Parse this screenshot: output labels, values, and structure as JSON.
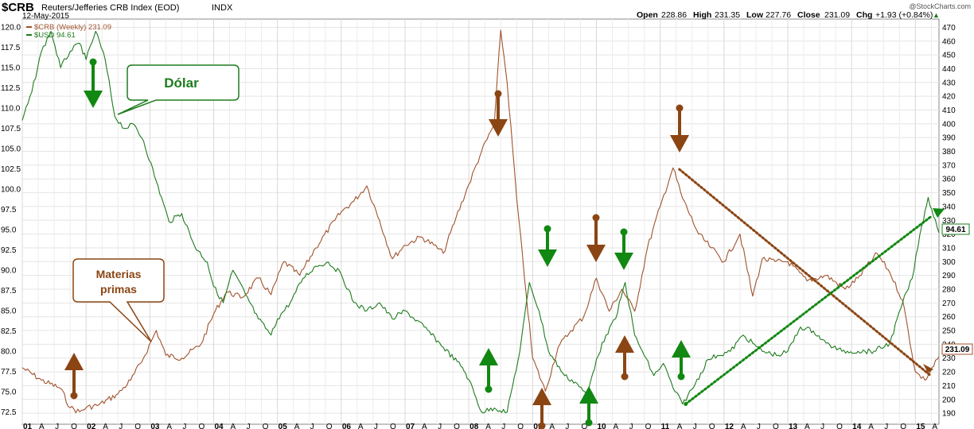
{
  "header": {
    "symbol": "$CRB",
    "name": "Reuters/Jefferies CRB Index (EOD)",
    "exchange": "INDX",
    "date": "12-May-2015",
    "copyright": "@StockCharts.com",
    "ohlc": {
      "open_label": "Open",
      "open": "228.86",
      "high_label": "High",
      "high": "231.35",
      "low_label": "Low",
      "low": "227.76",
      "close_label": "Close",
      "close": "231.09",
      "chg_label": "Chg",
      "chg": "+1.93 (+0.84%)"
    },
    "up_arrow": "▲"
  },
  "legend": [
    {
      "label": "$CRB (Weekly) 231.09",
      "color": "#a0522d"
    },
    {
      "label": "$USD 94.61",
      "color": "#1e7b1e"
    }
  ],
  "price_tags": {
    "crb": "231.09",
    "usd": "94.61"
  },
  "annotations": {
    "dolar": "Dólar",
    "materias_line1": "Materias",
    "materias_line2": "primas"
  },
  "colors": {
    "crb": "#a0522d",
    "usd": "#1e7b1e",
    "arrow_brown": "#8b4513",
    "arrow_green": "#118811"
  },
  "chart_data": {
    "type": "line",
    "title": "$CRB Reuters/Jefferies CRB Index (EOD)",
    "x_ticks": [
      "01",
      "A",
      "J",
      "O",
      "02",
      "A",
      "J",
      "O",
      "03",
      "A",
      "J",
      "O",
      "04",
      "A",
      "J",
      "O",
      "05",
      "A",
      "J",
      "O",
      "06",
      "A",
      "J",
      "O",
      "07",
      "A",
      "J",
      "O",
      "08",
      "A",
      "J",
      "O",
      "09",
      "A",
      "J",
      "O",
      "10",
      "A",
      "J",
      "O",
      "11",
      "A",
      "J",
      "O",
      "12",
      "A",
      "J",
      "O",
      "13",
      "A",
      "J",
      "O",
      "14",
      "A",
      "J",
      "O",
      "15",
      "A"
    ],
    "x_range": [
      2001.0,
      2015.37
    ],
    "left_axis": {
      "label": "$USD",
      "ylim": [
        71.0,
        121.0
      ],
      "ticks": [
        72.5,
        75.0,
        77.5,
        80.0,
        82.5,
        85.0,
        87.5,
        90.0,
        92.5,
        95.0,
        97.5,
        100.0,
        102.5,
        105.0,
        107.5,
        110.0,
        112.5,
        115.0,
        117.5,
        120.0
      ]
    },
    "right_axis": {
      "label": "$CRB",
      "ylim": [
        182,
        476
      ],
      "ticks": [
        190,
        200,
        210,
        220,
        230,
        240,
        250,
        260,
        270,
        280,
        290,
        300,
        310,
        320,
        330,
        340,
        350,
        360,
        370,
        380,
        390,
        400,
        410,
        420,
        430,
        440,
        450,
        460,
        470
      ]
    },
    "grid": true,
    "series": [
      {
        "name": "$CRB (Weekly)",
        "axis": "right",
        "points": [
          [
            2001.0,
            223
          ],
          [
            2001.3,
            214
          ],
          [
            2001.6,
            208
          ],
          [
            2001.75,
            194
          ],
          [
            2001.9,
            191
          ],
          [
            2002.0,
            194
          ],
          [
            2002.2,
            196
          ],
          [
            2002.5,
            204
          ],
          [
            2002.7,
            214
          ],
          [
            2002.9,
            230
          ],
          [
            2003.1,
            250
          ],
          [
            2003.25,
            232
          ],
          [
            2003.5,
            230
          ],
          [
            2003.8,
            240
          ],
          [
            2004.0,
            262
          ],
          [
            2004.2,
            278
          ],
          [
            2004.45,
            274
          ],
          [
            2004.7,
            288
          ],
          [
            2004.9,
            276
          ],
          [
            2005.1,
            300
          ],
          [
            2005.35,
            290
          ],
          [
            2005.6,
            310
          ],
          [
            2005.9,
            330
          ],
          [
            2006.0,
            336
          ],
          [
            2006.2,
            344
          ],
          [
            2006.4,
            355
          ],
          [
            2006.6,
            330
          ],
          [
            2006.8,
            302
          ],
          [
            2007.0,
            312
          ],
          [
            2007.25,
            318
          ],
          [
            2007.45,
            312
          ],
          [
            2007.6,
            306
          ],
          [
            2007.8,
            332
          ],
          [
            2008.0,
            356
          ],
          [
            2008.2,
            380
          ],
          [
            2008.4,
            400
          ],
          [
            2008.5,
            468
          ],
          [
            2008.6,
            430
          ],
          [
            2008.75,
            346
          ],
          [
            2008.9,
            276
          ],
          [
            2009.0,
            230
          ],
          [
            2009.2,
            206
          ],
          [
            2009.4,
            238
          ],
          [
            2009.6,
            250
          ],
          [
            2009.8,
            260
          ],
          [
            2010.0,
            288
          ],
          [
            2010.2,
            264
          ],
          [
            2010.4,
            280
          ],
          [
            2010.6,
            264
          ],
          [
            2010.8,
            310
          ],
          [
            2011.0,
            340
          ],
          [
            2011.2,
            368
          ],
          [
            2011.35,
            346
          ],
          [
            2011.6,
            320
          ],
          [
            2011.8,
            310
          ],
          [
            2012.0,
            300
          ],
          [
            2012.25,
            320
          ],
          [
            2012.45,
            275
          ],
          [
            2012.6,
            302
          ],
          [
            2012.8,
            300
          ],
          [
            2013.0,
            300
          ],
          [
            2013.3,
            286
          ],
          [
            2013.6,
            290
          ],
          [
            2013.9,
            280
          ],
          [
            2014.1,
            288
          ],
          [
            2014.4,
            306
          ],
          [
            2014.6,
            292
          ],
          [
            2014.8,
            272
          ],
          [
            2015.0,
            220
          ],
          [
            2015.15,
            214
          ],
          [
            2015.37,
            231
          ]
        ]
      },
      {
        "name": "$USD",
        "axis": "left",
        "points": [
          [
            2001.0,
            108.5
          ],
          [
            2001.15,
            112
          ],
          [
            2001.3,
            117
          ],
          [
            2001.45,
            119.5
          ],
          [
            2001.6,
            115
          ],
          [
            2001.75,
            117
          ],
          [
            2001.9,
            118
          ],
          [
            2002.0,
            116
          ],
          [
            2002.15,
            119.5
          ],
          [
            2002.3,
            116
          ],
          [
            2002.45,
            109
          ],
          [
            2002.6,
            107.5
          ],
          [
            2002.75,
            108
          ],
          [
            2002.9,
            106
          ],
          [
            2003.1,
            101
          ],
          [
            2003.3,
            96
          ],
          [
            2003.5,
            97
          ],
          [
            2003.7,
            93
          ],
          [
            2003.9,
            91
          ],
          [
            2004.0,
            88
          ],
          [
            2004.15,
            86
          ],
          [
            2004.3,
            90
          ],
          [
            2004.5,
            87
          ],
          [
            2004.7,
            84
          ],
          [
            2004.9,
            82
          ],
          [
            2005.0,
            84
          ],
          [
            2005.2,
            86
          ],
          [
            2005.4,
            89
          ],
          [
            2005.6,
            90.5
          ],
          [
            2005.8,
            91
          ],
          [
            2006.0,
            89.5
          ],
          [
            2006.2,
            86
          ],
          [
            2006.4,
            85
          ],
          [
            2006.6,
            86
          ],
          [
            2006.8,
            84
          ],
          [
            2007.0,
            85
          ],
          [
            2007.3,
            83
          ],
          [
            2007.6,
            80.5
          ],
          [
            2007.9,
            78
          ],
          [
            2008.0,
            76.5
          ],
          [
            2008.2,
            72.5
          ],
          [
            2008.4,
            73
          ],
          [
            2008.6,
            72.5
          ],
          [
            2008.8,
            80
          ],
          [
            2008.95,
            88.5
          ],
          [
            2009.1,
            85
          ],
          [
            2009.25,
            80
          ],
          [
            2009.5,
            77
          ],
          [
            2009.7,
            76
          ],
          [
            2009.85,
            74.5
          ],
          [
            2010.0,
            79
          ],
          [
            2010.15,
            82
          ],
          [
            2010.3,
            84
          ],
          [
            2010.45,
            88.5
          ],
          [
            2010.6,
            82
          ],
          [
            2010.75,
            79.5
          ],
          [
            2010.9,
            77
          ],
          [
            2011.05,
            78.5
          ],
          [
            2011.2,
            75.5
          ],
          [
            2011.35,
            73.5
          ],
          [
            2011.55,
            76
          ],
          [
            2011.75,
            79
          ],
          [
            2011.9,
            79.5
          ],
          [
            2012.1,
            80
          ],
          [
            2012.3,
            82
          ],
          [
            2012.45,
            81
          ],
          [
            2012.6,
            80
          ],
          [
            2012.85,
            79.5
          ],
          [
            2013.0,
            80
          ],
          [
            2013.2,
            83
          ],
          [
            2013.4,
            82.5
          ],
          [
            2013.6,
            81
          ],
          [
            2013.85,
            80
          ],
          [
            2014.1,
            80
          ],
          [
            2014.35,
            80
          ],
          [
            2014.6,
            81
          ],
          [
            2014.8,
            86
          ],
          [
            2014.95,
            89
          ],
          [
            2015.1,
            95.5
          ],
          [
            2015.2,
            99
          ],
          [
            2015.37,
            94.61
          ]
        ]
      }
    ]
  }
}
